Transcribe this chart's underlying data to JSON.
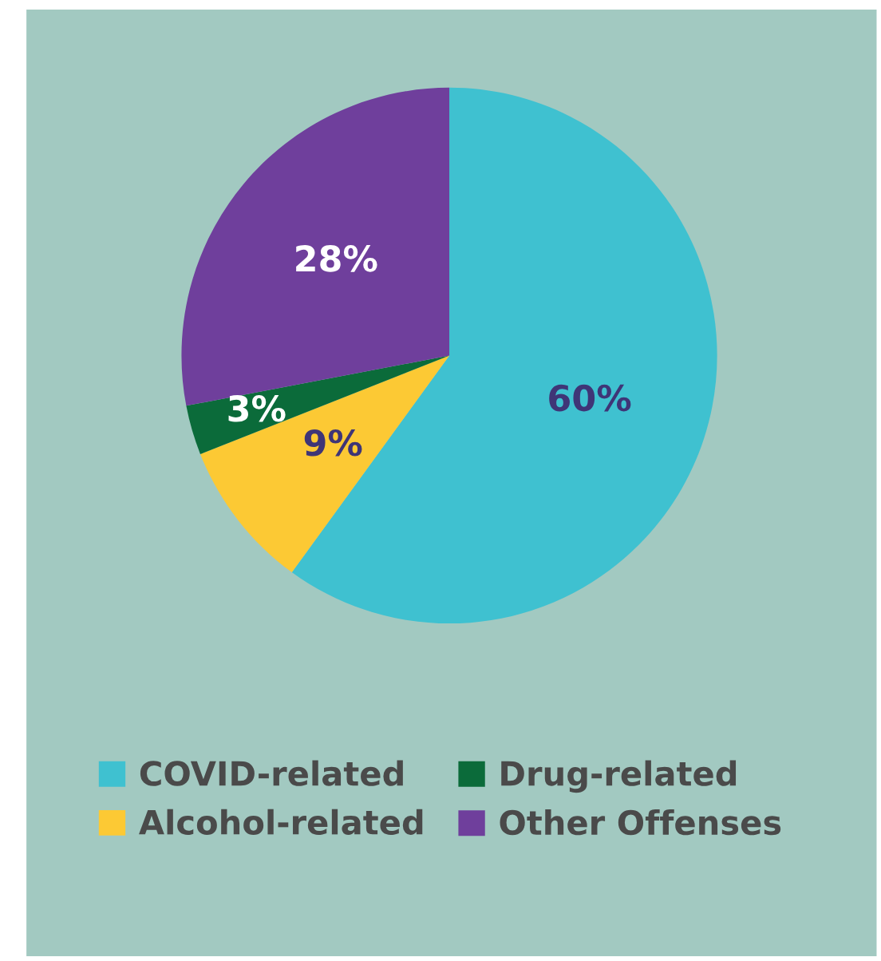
{
  "chart_data": {
    "type": "pie",
    "categories": [
      "COVID-related",
      "Alcohol-related",
      "Drug-related",
      "Other Offenses"
    ],
    "values": [
      60,
      9,
      3,
      28
    ],
    "colors": [
      "#3fc1d0",
      "#fcc934",
      "#0b6b3a",
      "#6f3f9c"
    ],
    "value_labels": [
      "60%",
      "9%",
      "3%",
      "28%"
    ],
    "legend": "bottom"
  }
}
